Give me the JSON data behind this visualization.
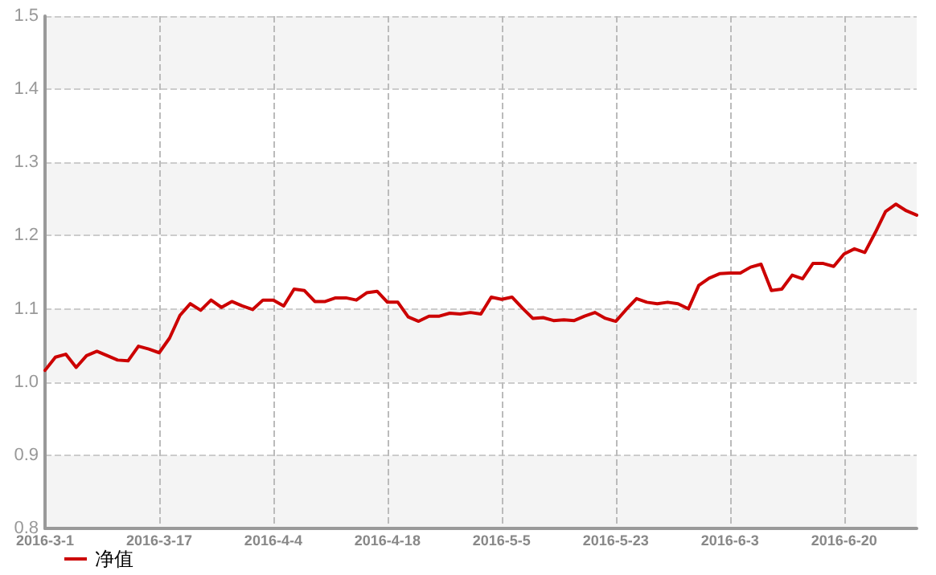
{
  "chart_data": {
    "type": "line",
    "categories": [
      "2016-3-1",
      null,
      null,
      null,
      null,
      null,
      null,
      null,
      null,
      null,
      null,
      "2016-3-17",
      null,
      null,
      null,
      null,
      null,
      null,
      null,
      null,
      null,
      null,
      "2016-4-4",
      null,
      null,
      null,
      null,
      null,
      null,
      null,
      null,
      null,
      null,
      "2016-4-18",
      null,
      null,
      null,
      null,
      null,
      null,
      null,
      null,
      null,
      null,
      "2016-5-5",
      null,
      null,
      null,
      null,
      null,
      null,
      null,
      null,
      null,
      null,
      "2016-5-23",
      null,
      null,
      null,
      null,
      null,
      null,
      null,
      null,
      null,
      null,
      "2016-6-3",
      null,
      null,
      null,
      null,
      null,
      null,
      null,
      null,
      null,
      null,
      "2016-6-20",
      null,
      null,
      null,
      null,
      null,
      null,
      null
    ],
    "series": [
      {
        "name": "净值",
        "color": "#cc0000",
        "values": [
          1.016,
          1.034,
          1.038,
          1.02,
          1.036,
          1.042,
          1.036,
          1.03,
          1.029,
          1.049,
          1.045,
          1.04,
          1.06,
          1.091,
          1.107,
          1.098,
          1.112,
          1.102,
          1.11,
          1.104,
          1.099,
          1.112,
          1.112,
          1.104,
          1.127,
          1.125,
          1.11,
          1.11,
          1.115,
          1.115,
          1.112,
          1.122,
          1.124,
          1.109,
          1.109,
          1.089,
          1.083,
          1.09,
          1.09,
          1.094,
          1.093,
          1.095,
          1.093,
          1.116,
          1.113,
          1.116,
          1.101,
          1.087,
          1.088,
          1.084,
          1.085,
          1.084,
          1.09,
          1.095,
          1.087,
          1.083,
          1.099,
          1.114,
          1.109,
          1.107,
          1.109,
          1.107,
          1.1,
          1.132,
          1.142,
          1.148,
          1.149,
          1.149,
          1.157,
          1.161,
          1.125,
          1.127,
          1.146,
          1.141,
          1.162,
          1.162,
          1.158,
          1.175,
          1.182,
          1.177,
          1.204,
          1.233,
          1.243,
          1.234,
          1.228
        ]
      }
    ],
    "ylim": [
      0.8,
      1.5
    ],
    "yticks": [
      0.8,
      0.9,
      {
        "value": 1,
        "label": "1.0"
      },
      1.1,
      1.2,
      1.3,
      1.4,
      1.5
    ],
    "grid": true,
    "legend": "bottom left",
    "marker": "none",
    "line_style": "solid"
  }
}
